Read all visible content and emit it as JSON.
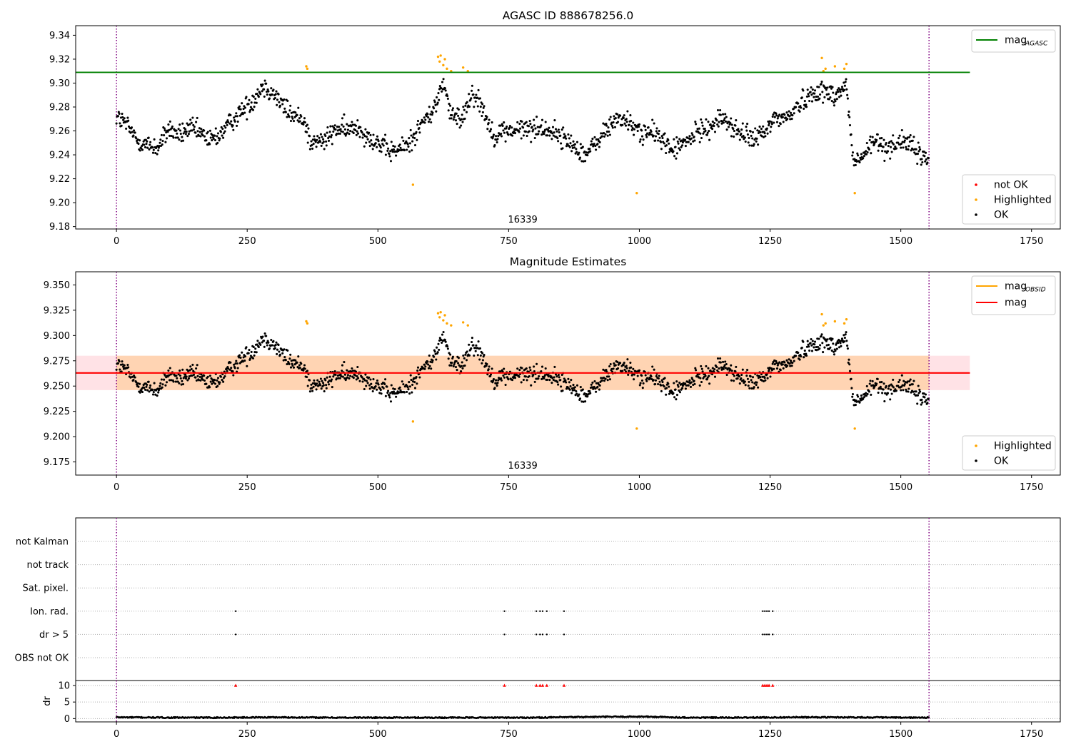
{
  "chart_data": [
    {
      "type": "scatter",
      "title": "AGASC ID 888678256.0",
      "annotation": "16339",
      "xlim": [
        -78,
        1805
      ],
      "ylim": [
        9.178,
        9.348
      ],
      "x_ticks": [
        0,
        250,
        500,
        750,
        1000,
        1250,
        1500,
        1750
      ],
      "y_ticks": [
        9.18,
        9.2,
        9.22,
        9.24,
        9.26,
        9.28,
        9.3,
        9.32,
        9.34
      ],
      "y_tick_decimals": 2,
      "vlines": [
        0,
        1554
      ],
      "hline": {
        "y": 9.309,
        "x_end": 1632,
        "color": "#008000",
        "label": "mag",
        "sub": "AGASC"
      },
      "legend_top": [
        {
          "label": "mag",
          "sub": "AGASC",
          "kind": "line",
          "color": "#008000"
        }
      ],
      "legend_bottom": [
        {
          "label": "not OK",
          "kind": "dot",
          "color": "#ff0000"
        },
        {
          "label": "Highlighted",
          "kind": "dot",
          "color": "#ffa500"
        },
        {
          "label": "OK",
          "kind": "dot",
          "color": "#000000"
        }
      ],
      "series": [
        {
          "name": "OK",
          "color": "#000000",
          "points": [
            [
              0,
              9.272
            ],
            [
              20,
              9.265
            ],
            [
              40,
              9.252
            ],
            [
              60,
              9.248
            ],
            [
              80,
              9.246
            ],
            [
              100,
              9.262
            ],
            [
              120,
              9.256
            ],
            [
              140,
              9.262
            ],
            [
              160,
              9.258
            ],
            [
              180,
              9.252
            ],
            [
              200,
              9.258
            ],
            [
              220,
              9.268
            ],
            [
              240,
              9.277
            ],
            [
              260,
              9.285
            ],
            [
              280,
              9.298
            ],
            [
              300,
              9.292
            ],
            [
              320,
              9.28
            ],
            [
              340,
              9.272
            ],
            [
              360,
              9.27
            ],
            [
              370,
              9.25
            ],
            [
              400,
              9.252
            ],
            [
              420,
              9.262
            ],
            [
              440,
              9.26
            ],
            [
              460,
              9.264
            ],
            [
              480,
              9.256
            ],
            [
              500,
              9.25
            ],
            [
              520,
              9.243
            ],
            [
              540,
              9.244
            ],
            [
              560,
              9.25
            ],
            [
              580,
              9.264
            ],
            [
              600,
              9.274
            ],
            [
              610,
              9.28
            ],
            [
              625,
              9.302
            ],
            [
              640,
              9.272
            ],
            [
              660,
              9.27
            ],
            [
              680,
              9.293
            ],
            [
              700,
              9.28
            ],
            [
              720,
              9.256
            ],
            [
              740,
              9.26
            ],
            [
              760,
              9.26
            ],
            [
              780,
              9.262
            ],
            [
              800,
              9.262
            ],
            [
              820,
              9.262
            ],
            [
              840,
              9.258
            ],
            [
              860,
              9.252
            ],
            [
              880,
              9.246
            ],
            [
              900,
              9.24
            ],
            [
              920,
              9.252
            ],
            [
              940,
              9.262
            ],
            [
              960,
              9.272
            ],
            [
              980,
              9.266
            ],
            [
              1000,
              9.26
            ],
            [
              1020,
              9.258
            ],
            [
              1040,
              9.256
            ],
            [
              1060,
              9.244
            ],
            [
              1080,
              9.248
            ],
            [
              1100,
              9.254
            ],
            [
              1120,
              9.262
            ],
            [
              1140,
              9.264
            ],
            [
              1160,
              9.272
            ],
            [
              1180,
              9.262
            ],
            [
              1200,
              9.256
            ],
            [
              1220,
              9.254
            ],
            [
              1240,
              9.258
            ],
            [
              1260,
              9.272
            ],
            [
              1280,
              9.27
            ],
            [
              1300,
              9.28
            ],
            [
              1320,
              9.288
            ],
            [
              1340,
              9.294
            ],
            [
              1360,
              9.292
            ],
            [
              1380,
              9.29
            ],
            [
              1395,
              9.3
            ],
            [
              1410,
              9.232
            ],
            [
              1430,
              9.24
            ],
            [
              1450,
              9.252
            ],
            [
              1470,
              9.246
            ],
            [
              1490,
              9.25
            ],
            [
              1510,
              9.252
            ],
            [
              1530,
              9.242
            ],
            [
              1550,
              9.236
            ]
          ]
        },
        {
          "name": "Highlighted",
          "color": "#ffa500",
          "points": [
            [
              363,
              9.314
            ],
            [
              365,
              9.312
            ],
            [
              567,
              9.215
            ],
            [
              615,
              9.322
            ],
            [
              618,
              9.318
            ],
            [
              620,
              9.323
            ],
            [
              625,
              9.315
            ],
            [
              628,
              9.32
            ],
            [
              632,
              9.312
            ],
            [
              640,
              9.31
            ],
            [
              663,
              9.313
            ],
            [
              672,
              9.31
            ],
            [
              995,
              9.208
            ],
            [
              1349,
              9.321
            ],
            [
              1352,
              9.31
            ],
            [
              1356,
              9.312
            ],
            [
              1374,
              9.314
            ],
            [
              1392,
              9.312
            ],
            [
              1396,
              9.316
            ],
            [
              1412,
              9.208
            ]
          ]
        }
      ]
    },
    {
      "type": "scatter",
      "title": "Magnitude Estimates",
      "annotation": "16339",
      "xlim": [
        -78,
        1805
      ],
      "ylim": [
        9.162,
        9.363
      ],
      "x_ticks": [
        0,
        250,
        500,
        750,
        1000,
        1250,
        1500,
        1750
      ],
      "y_ticks": [
        9.175,
        9.2,
        9.225,
        9.25,
        9.275,
        9.3,
        9.325,
        9.35
      ],
      "y_tick_decimals": 3,
      "vlines": [
        0,
        1554
      ],
      "band": {
        "y0": 9.246,
        "y1": 9.28,
        "x_end": 1632,
        "color": "#ffb6c1"
      },
      "inner_band": {
        "y0": 9.246,
        "y1": 9.28,
        "x0": 0,
        "x1": 1554,
        "color": "#ffa500"
      },
      "hline": {
        "y": 9.263,
        "x_end": 1632,
        "color": "#ff0000",
        "label": "mag"
      },
      "legend_top": [
        {
          "label": "mag",
          "sub": "OBSID",
          "kind": "line",
          "color": "#ffa500"
        },
        {
          "label": "mag",
          "kind": "line",
          "color": "#ff0000"
        }
      ],
      "legend_bottom": [
        {
          "label": "Highlighted",
          "kind": "dot",
          "color": "#ffa500"
        },
        {
          "label": "OK",
          "kind": "dot",
          "color": "#000000"
        }
      ],
      "series": [
        {
          "name": "OK",
          "color": "#000000",
          "points": [
            [
              0,
              9.272
            ],
            [
              20,
              9.265
            ],
            [
              40,
              9.252
            ],
            [
              60,
              9.248
            ],
            [
              80,
              9.246
            ],
            [
              100,
              9.262
            ],
            [
              120,
              9.256
            ],
            [
              140,
              9.262
            ],
            [
              160,
              9.258
            ],
            [
              180,
              9.252
            ],
            [
              200,
              9.258
            ],
            [
              220,
              9.268
            ],
            [
              240,
              9.277
            ],
            [
              260,
              9.285
            ],
            [
              280,
              9.298
            ],
            [
              300,
              9.292
            ],
            [
              320,
              9.28
            ],
            [
              340,
              9.272
            ],
            [
              360,
              9.27
            ],
            [
              370,
              9.25
            ],
            [
              400,
              9.252
            ],
            [
              420,
              9.262
            ],
            [
              440,
              9.26
            ],
            [
              460,
              9.264
            ],
            [
              480,
              9.256
            ],
            [
              500,
              9.25
            ],
            [
              520,
              9.243
            ],
            [
              540,
              9.244
            ],
            [
              560,
              9.25
            ],
            [
              580,
              9.264
            ],
            [
              600,
              9.274
            ],
            [
              610,
              9.28
            ],
            [
              625,
              9.302
            ],
            [
              640,
              9.272
            ],
            [
              660,
              9.27
            ],
            [
              680,
              9.293
            ],
            [
              700,
              9.28
            ],
            [
              720,
              9.256
            ],
            [
              740,
              9.26
            ],
            [
              760,
              9.26
            ],
            [
              780,
              9.262
            ],
            [
              800,
              9.262
            ],
            [
              820,
              9.262
            ],
            [
              840,
              9.258
            ],
            [
              860,
              9.252
            ],
            [
              880,
              9.246
            ],
            [
              900,
              9.24
            ],
            [
              920,
              9.252
            ],
            [
              940,
              9.262
            ],
            [
              960,
              9.272
            ],
            [
              980,
              9.266
            ],
            [
              1000,
              9.26
            ],
            [
              1020,
              9.258
            ],
            [
              1040,
              9.256
            ],
            [
              1060,
              9.244
            ],
            [
              1080,
              9.248
            ],
            [
              1100,
              9.254
            ],
            [
              1120,
              9.262
            ],
            [
              1140,
              9.264
            ],
            [
              1160,
              9.272
            ],
            [
              1180,
              9.262
            ],
            [
              1200,
              9.256
            ],
            [
              1220,
              9.254
            ],
            [
              1240,
              9.258
            ],
            [
              1260,
              9.272
            ],
            [
              1280,
              9.27
            ],
            [
              1300,
              9.28
            ],
            [
              1320,
              9.288
            ],
            [
              1340,
              9.294
            ],
            [
              1360,
              9.292
            ],
            [
              1380,
              9.29
            ],
            [
              1395,
              9.3
            ],
            [
              1410,
              9.232
            ],
            [
              1430,
              9.24
            ],
            [
              1450,
              9.252
            ],
            [
              1470,
              9.246
            ],
            [
              1490,
              9.25
            ],
            [
              1510,
              9.252
            ],
            [
              1530,
              9.242
            ],
            [
              1550,
              9.236
            ]
          ]
        },
        {
          "name": "Highlighted",
          "color": "#ffa500",
          "points": [
            [
              363,
              9.314
            ],
            [
              365,
              9.312
            ],
            [
              567,
              9.215
            ],
            [
              615,
              9.322
            ],
            [
              618,
              9.318
            ],
            [
              620,
              9.323
            ],
            [
              625,
              9.315
            ],
            [
              628,
              9.32
            ],
            [
              632,
              9.312
            ],
            [
              640,
              9.31
            ],
            [
              663,
              9.313
            ],
            [
              672,
              9.31
            ],
            [
              995,
              9.208
            ],
            [
              1349,
              9.321
            ],
            [
              1352,
              9.31
            ],
            [
              1356,
              9.312
            ],
            [
              1374,
              9.314
            ],
            [
              1392,
              9.312
            ],
            [
              1396,
              9.316
            ],
            [
              1412,
              9.208
            ]
          ]
        }
      ]
    },
    {
      "type": "scatter",
      "title": "",
      "xlim": [
        -78,
        1805
      ],
      "vlines": [
        0,
        1554
      ],
      "flag_rows": [
        "not Kalman",
        "not track",
        "Sat. pixel.",
        "Ion. rad.",
        "dr > 5",
        "OBS not OK"
      ],
      "flags": [
        {
          "row": "Ion. rad.",
          "x": [
            228,
            742,
            803,
            810,
            815,
            823,
            856,
            1236,
            1240,
            1244,
            1248,
            1255
          ]
        },
        {
          "row": "dr > 5",
          "x": [
            228,
            742,
            803,
            810,
            815,
            823,
            856,
            1236,
            1240,
            1244,
            1248,
            1255
          ]
        }
      ],
      "dr": {
        "ylabel": "dr",
        "ylim": [
          -1,
          11.5
        ],
        "y_ticks": [
          0,
          5,
          10
        ],
        "x_ticks": [
          0,
          250,
          500,
          750,
          1000,
          1250,
          1500,
          1750
        ],
        "baseline": [
          [
            0,
            0.4
          ],
          [
            100,
            0.3
          ],
          [
            200,
            0.3
          ],
          [
            300,
            0.4
          ],
          [
            400,
            0.3
          ],
          [
            500,
            0.3
          ],
          [
            600,
            0.3
          ],
          [
            700,
            0.3
          ],
          [
            800,
            0.3
          ],
          [
            900,
            0.5
          ],
          [
            1000,
            0.6
          ],
          [
            1100,
            0.3
          ],
          [
            1200,
            0.3
          ],
          [
            1300,
            0.4
          ],
          [
            1400,
            0.4
          ],
          [
            1500,
            0.3
          ],
          [
            1554,
            0.3
          ]
        ],
        "outliers": {
          "color": "#ff0000",
          "y": 10,
          "x": [
            228,
            742,
            803,
            810,
            815,
            823,
            856,
            1236,
            1240,
            1244,
            1248,
            1255
          ]
        }
      }
    }
  ]
}
